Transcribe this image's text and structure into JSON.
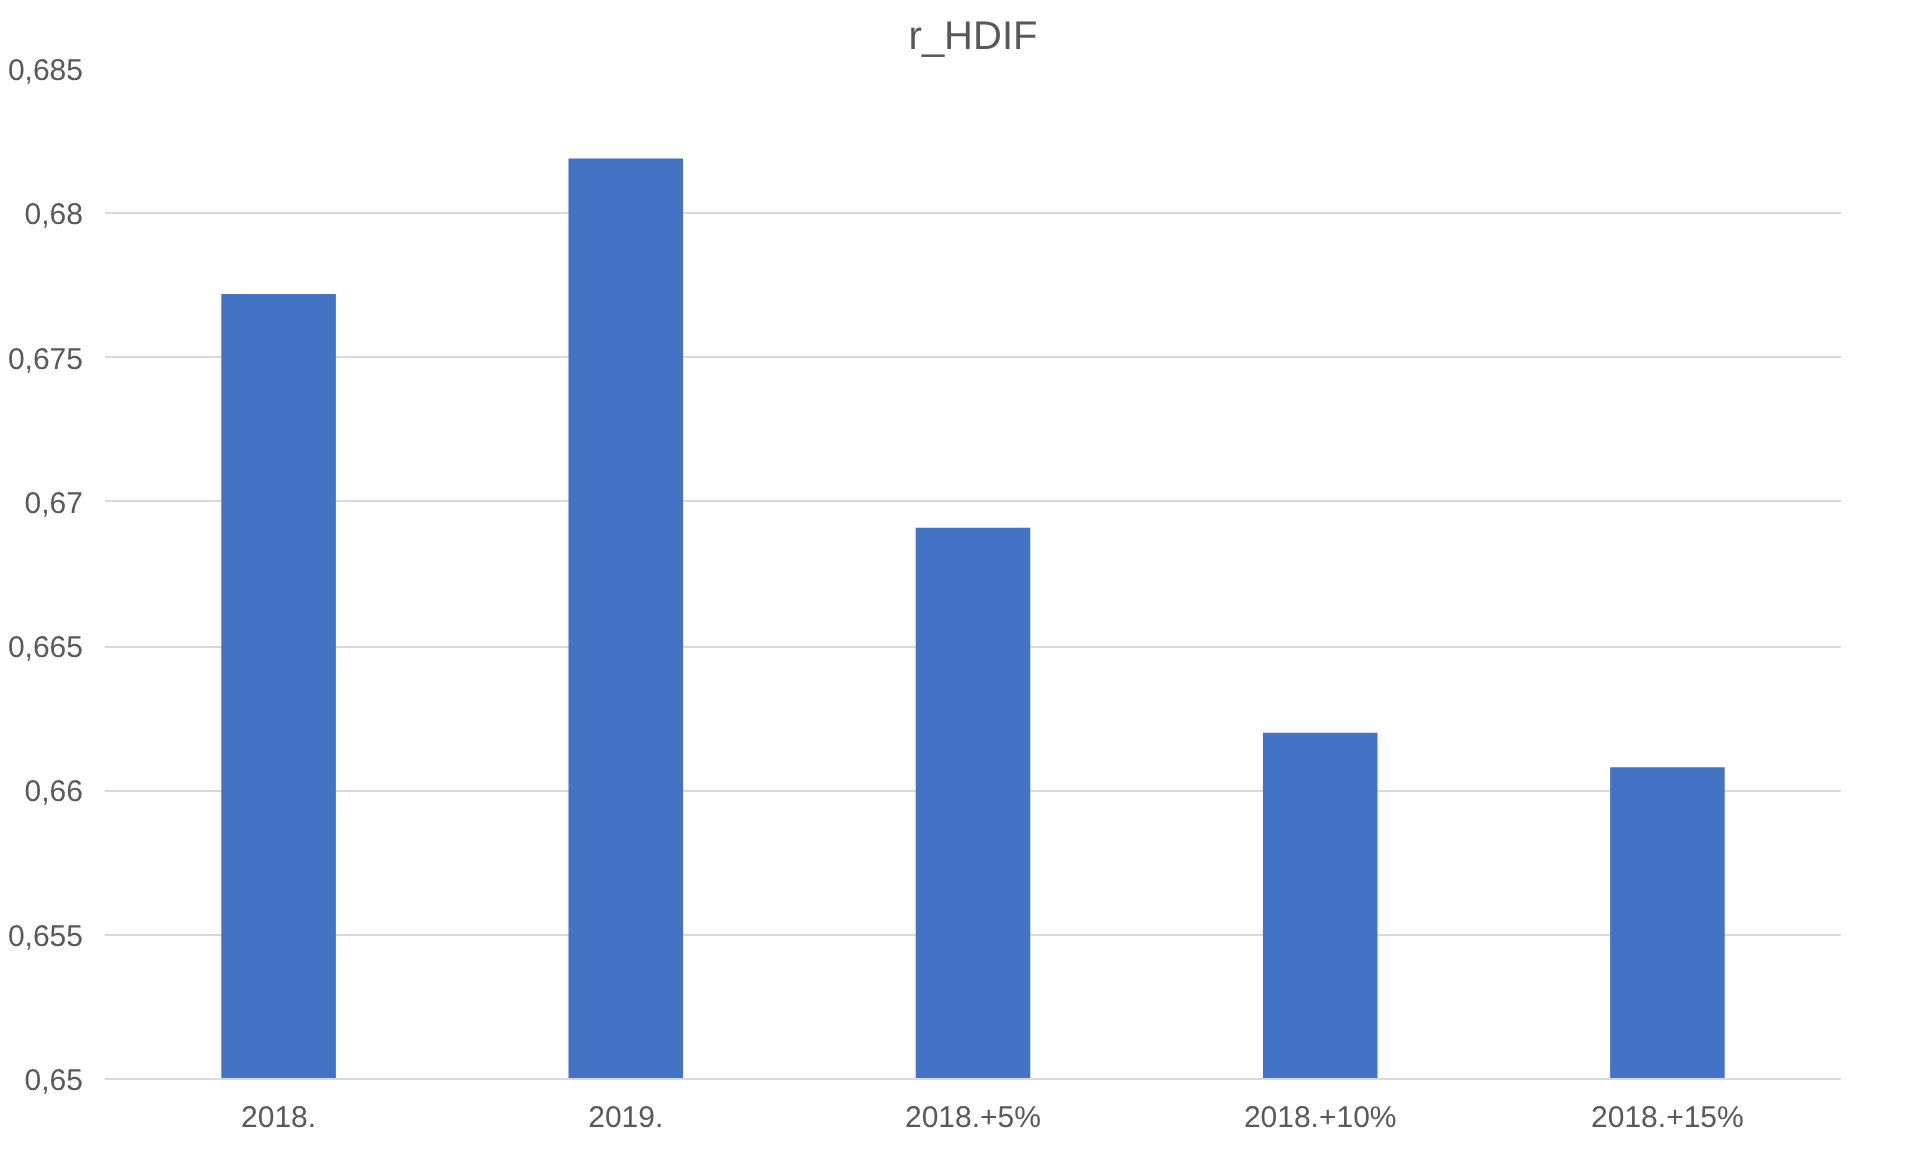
{
  "chart_data": {
    "type": "bar",
    "title": "r_HDIF",
    "categories": [
      "2018.",
      "2019.",
      "2018.+5%",
      "2018.+10%",
      "2018.+15%"
    ],
    "values": [
      0.6772,
      0.6819,
      0.6691,
      0.662,
      0.6608
    ],
    "color": "#4472c4",
    "ylim": [
      0.65,
      0.685
    ],
    "yticks": [
      {
        "value": 0.65,
        "label": "0,65"
      },
      {
        "value": 0.655,
        "label": "0,655"
      },
      {
        "value": 0.66,
        "label": "0,66"
      },
      {
        "value": 0.665,
        "label": "0,665"
      },
      {
        "value": 0.67,
        "label": "0,67"
      },
      {
        "value": 0.675,
        "label": "0,675"
      },
      {
        "value": 0.68,
        "label": "0,68"
      },
      {
        "value": 0.685,
        "label": "0,685"
      }
    ],
    "grid": "y"
  }
}
